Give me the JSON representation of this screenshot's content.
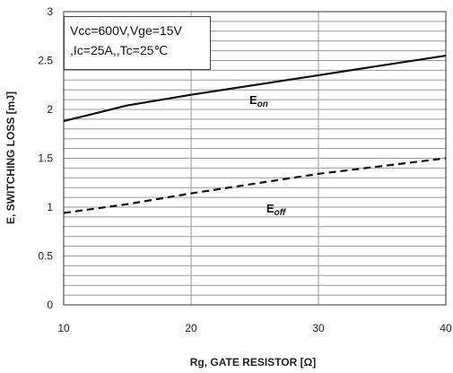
{
  "chart_data": {
    "type": "line",
    "xlabel": "Rg,  GATE RESISTOR [Ω]",
    "ylabel": "E, SWITCHING LOSS [mJ]",
    "xlim": [
      10,
      40
    ],
    "ylim": [
      0,
      3
    ],
    "x_ticks": [
      "10",
      "20",
      "30",
      "40"
    ],
    "y_ticks": [
      "0",
      "0.5",
      "1",
      "1.5",
      "2",
      "2.5",
      "3"
    ],
    "grid": true,
    "annotation_lines": [
      "Vcc=600V,Vge=15V",
      ",Ic=25A,,Tc=25℃"
    ],
    "series": [
      {
        "main": "E",
        "sub": "on",
        "style": "solid",
        "x": [
          10,
          15,
          20,
          25,
          30,
          35,
          40
        ],
        "y": [
          1.88,
          2.04,
          2.15,
          2.25,
          2.35,
          2.45,
          2.55
        ]
      },
      {
        "main": "E",
        "sub": "off",
        "style": "dashed",
        "x": [
          10,
          15,
          20,
          25,
          30,
          35,
          40
        ],
        "y": [
          0.94,
          1.03,
          1.14,
          1.24,
          1.34,
          1.42,
          1.5
        ]
      }
    ]
  }
}
